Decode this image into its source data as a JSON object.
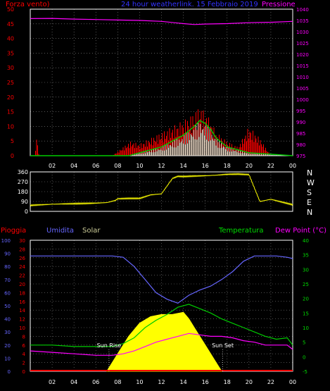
{
  "header": {
    "left_label": "Forza vento)",
    "center_label": "24 hour weatherlink. 15 Febbraio 2019",
    "right_label": "Pressione"
  },
  "compass": [
    "N",
    "W",
    "S",
    "E",
    "N"
  ],
  "bottom_labels": {
    "pioggia": "Pioggia",
    "umidita": "Umidita",
    "solar": "Solar",
    "temperatura": "Temperatura",
    "dew_point": "Dew Point (°C)",
    "sun_rise": "Sun Rise",
    "sun_set": "Sun Set"
  },
  "colors": {
    "wind": "#ff0000",
    "gust": "#ff0000",
    "wind_avg": "#00cc00",
    "wind_low": "#e8ffe8",
    "pressure": "#ff00ff",
    "direction": "#ffff00",
    "humidity": "#6666ff",
    "solar": "#ffff00",
    "temperature": "#00cc00",
    "dew_point": "#ff00ff",
    "rain": "#ff0000",
    "grid": "#ffffff",
    "axis": "#ffffff"
  },
  "chart_data": [
    {
      "type": "line",
      "name": "wind_pressure",
      "x_ticks": [
        "02",
        "04",
        "06",
        "08",
        "10",
        "12",
        "14",
        "16",
        "18",
        "20",
        "22",
        "00"
      ],
      "left_axis": {
        "ticks": [
          0,
          5,
          10,
          15,
          20,
          25,
          30,
          35,
          40,
          45,
          50
        ],
        "range": [
          0,
          50
        ]
      },
      "right_axis": {
        "ticks": [
          975,
          980,
          985,
          990,
          995,
          1000,
          1005,
          1010,
          1015,
          1020,
          1025,
          1030,
          1035,
          1040
        ],
        "range": [
          975,
          1040
        ]
      },
      "pressure": {
        "x": [
          0,
          2,
          4,
          6,
          8,
          10,
          12,
          14,
          15,
          16,
          18,
          20,
          22,
          24
        ],
        "values": [
          1035.8,
          1035.9,
          1035.6,
          1035.4,
          1035.2,
          1035.0,
          1034.6,
          1033.6,
          1033.2,
          1033.4,
          1033.6,
          1034.0,
          1034.2,
          1034.6
        ]
      },
      "wind_gust": {
        "x": [
          0,
          0.4,
          0.6,
          0.8,
          1.2,
          7.5,
          8.5,
          9.2,
          10.0,
          11.0,
          12.0,
          13.0,
          14.0,
          14.8,
          15.5,
          16.0,
          16.5,
          17.0,
          18.0,
          19.0,
          20.0,
          21.0,
          22.0,
          24.0
        ],
        "values": [
          0,
          0,
          7,
          0,
          0,
          0,
          3,
          5,
          4,
          6,
          8,
          10,
          12,
          14,
          17,
          15,
          12,
          8,
          5,
          3,
          10,
          6,
          0,
          0
        ]
      },
      "wind_avg": {
        "x": [
          0,
          9,
          10,
          11,
          12,
          13,
          14,
          15,
          15.5,
          16,
          16.5,
          17,
          18,
          19,
          20,
          24
        ],
        "values": [
          0,
          0,
          1,
          2,
          3,
          5,
          7,
          10,
          12,
          11,
          9,
          6,
          3,
          2,
          1,
          0
        ]
      }
    },
    {
      "type": "line",
      "name": "wind_direction",
      "y_ticks": [
        0,
        90,
        180,
        270,
        360
      ],
      "range": [
        0,
        360
      ],
      "x": [
        0,
        1,
        2,
        3,
        4,
        5,
        6,
        7,
        7.8,
        8,
        9,
        10,
        11,
        12,
        12.5,
        13,
        13.5,
        14,
        15,
        16,
        17,
        18,
        19,
        20,
        21,
        22,
        23,
        24
      ],
      "values": [
        55,
        60,
        65,
        68,
        70,
        72,
        75,
        80,
        100,
        115,
        118,
        118,
        150,
        160,
        230,
        300,
        320,
        318,
        322,
        325,
        330,
        338,
        340,
        335,
        90,
        110,
        85,
        60
      ]
    },
    {
      "type": "area",
      "name": "weather_combo",
      "x_ticks": [
        "02",
        "04",
        "06",
        "08",
        "10",
        "12",
        "14",
        "16",
        "18",
        "20",
        "22",
        "00"
      ],
      "humidity_axis": {
        "ticks": [
          0,
          10,
          20,
          30,
          40,
          50,
          60,
          70,
          80,
          90,
          100
        ],
        "range": [
          0,
          100
        ]
      },
      "rain_axis": {
        "ticks": [
          0,
          2,
          4,
          6,
          8,
          10,
          12,
          14,
          16,
          18,
          20,
          22,
          24,
          26,
          28,
          30
        ],
        "range": [
          0,
          30
        ]
      },
      "temp_axis": {
        "ticks": [
          -5,
          0,
          5,
          10,
          15,
          20,
          25,
          30,
          35,
          40
        ],
        "range": [
          -5,
          40
        ]
      },
      "humidity": {
        "x": [
          0,
          2,
          4,
          6,
          7.5,
          8.5,
          9.5,
          10.5,
          11.5,
          12.5,
          13.5,
          14.5,
          15.5,
          16.5,
          17.5,
          18.5,
          19.5,
          20.5,
          21.5,
          22.5,
          23.5,
          24
        ],
        "values": [
          88,
          88,
          88,
          88,
          88,
          87,
          80,
          70,
          60,
          55,
          52,
          58,
          62,
          65,
          70,
          76,
          84,
          88,
          88,
          88,
          87,
          86
        ]
      },
      "temperature": {
        "x": [
          0,
          2,
          4,
          6,
          7.5,
          8.5,
          9.5,
          10.5,
          11.5,
          12.5,
          13.5,
          14.5,
          15.5,
          16.5,
          17.5,
          18.5,
          19.5,
          20.5,
          21.5,
          22.5,
          23.5,
          24
        ],
        "values": [
          4,
          4,
          3.5,
          3.5,
          3.5,
          4.5,
          6.5,
          10,
          12.5,
          14.5,
          17,
          18,
          16.5,
          15,
          13,
          11.5,
          10,
          8.5,
          7,
          6,
          6.5,
          4
        ]
      },
      "dew_point": {
        "x": [
          0,
          2,
          4,
          6,
          7.5,
          8.5,
          9.5,
          10.5,
          11.5,
          12.5,
          13.5,
          14.5,
          15.5,
          16.5,
          17.5,
          18.5,
          19.5,
          20.5,
          21.5,
          22.5,
          23.5,
          24
        ],
        "values": [
          2,
          1.5,
          1,
          0.5,
          0.5,
          1,
          2,
          3.5,
          5,
          6,
          7,
          8,
          7.5,
          7,
          7,
          6.5,
          5.5,
          5,
          4,
          4,
          4,
          2.5
        ]
      },
      "solar": {
        "x": [
          7.0,
          8.0,
          9.0,
          10.0,
          11.0,
          12.0,
          13.0,
          14.0,
          14.5,
          15.0,
          15.5,
          16.0,
          16.5,
          17.0,
          17.5
        ],
        "values": [
          0,
          4,
          8,
          11,
          12.5,
          13,
          13,
          13.5,
          12,
          10,
          8,
          6,
          4,
          2,
          0
        ]
      },
      "rain": {
        "x": [
          0,
          24
        ],
        "values": [
          0,
          0
        ]
      },
      "sun_rise_x": 7.2,
      "sun_set_x": 17.6
    }
  ]
}
